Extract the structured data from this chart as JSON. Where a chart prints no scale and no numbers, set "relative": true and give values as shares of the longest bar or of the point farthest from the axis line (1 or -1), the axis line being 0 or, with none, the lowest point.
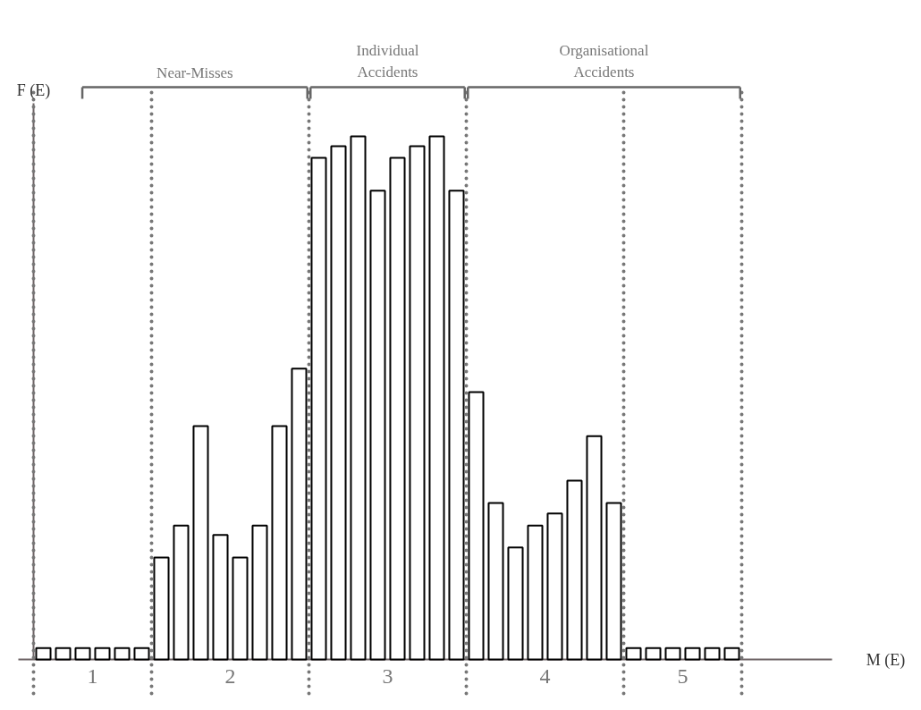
{
  "chart_data": {
    "type": "bar",
    "relative": true,
    "ylabel": "F (E)",
    "categories": [
      null,
      null,
      null,
      null,
      null,
      null,
      null,
      null,
      null,
      null,
      null,
      null,
      null,
      null,
      null,
      null,
      null,
      null,
      null,
      null,
      null,
      null,
      null,
      null,
      null,
      null,
      null,
      null,
      null,
      null,
      null,
      null,
      null,
      null,
      null,
      null
    ],
    "series": [
      {
        "color": "#ffffff",
        "values": [
          0.022,
          0.022,
          0.022,
          0.022,
          0.022,
          0.022,
          0.195,
          0.256,
          0.446,
          0.238,
          0.195,
          0.256,
          0.446,
          0.556,
          0.959,
          0.981,
          1,
          0.896,
          0.959,
          0.981,
          1,
          0.896,
          0.511,
          0.299,
          0.214,
          0.256,
          0.279,
          0.342,
          0.427,
          0.299,
          0.022,
          0.022,
          0.022,
          0.022,
          0.022,
          0.022
        ]
      }
    ],
    "annotations": [
      "Near-Misses",
      "Individual\nAccidents",
      "Organisational\nAccidents",
      "1",
      "2",
      "3",
      "4",
      "5",
      "M (E)"
    ]
  }
}
